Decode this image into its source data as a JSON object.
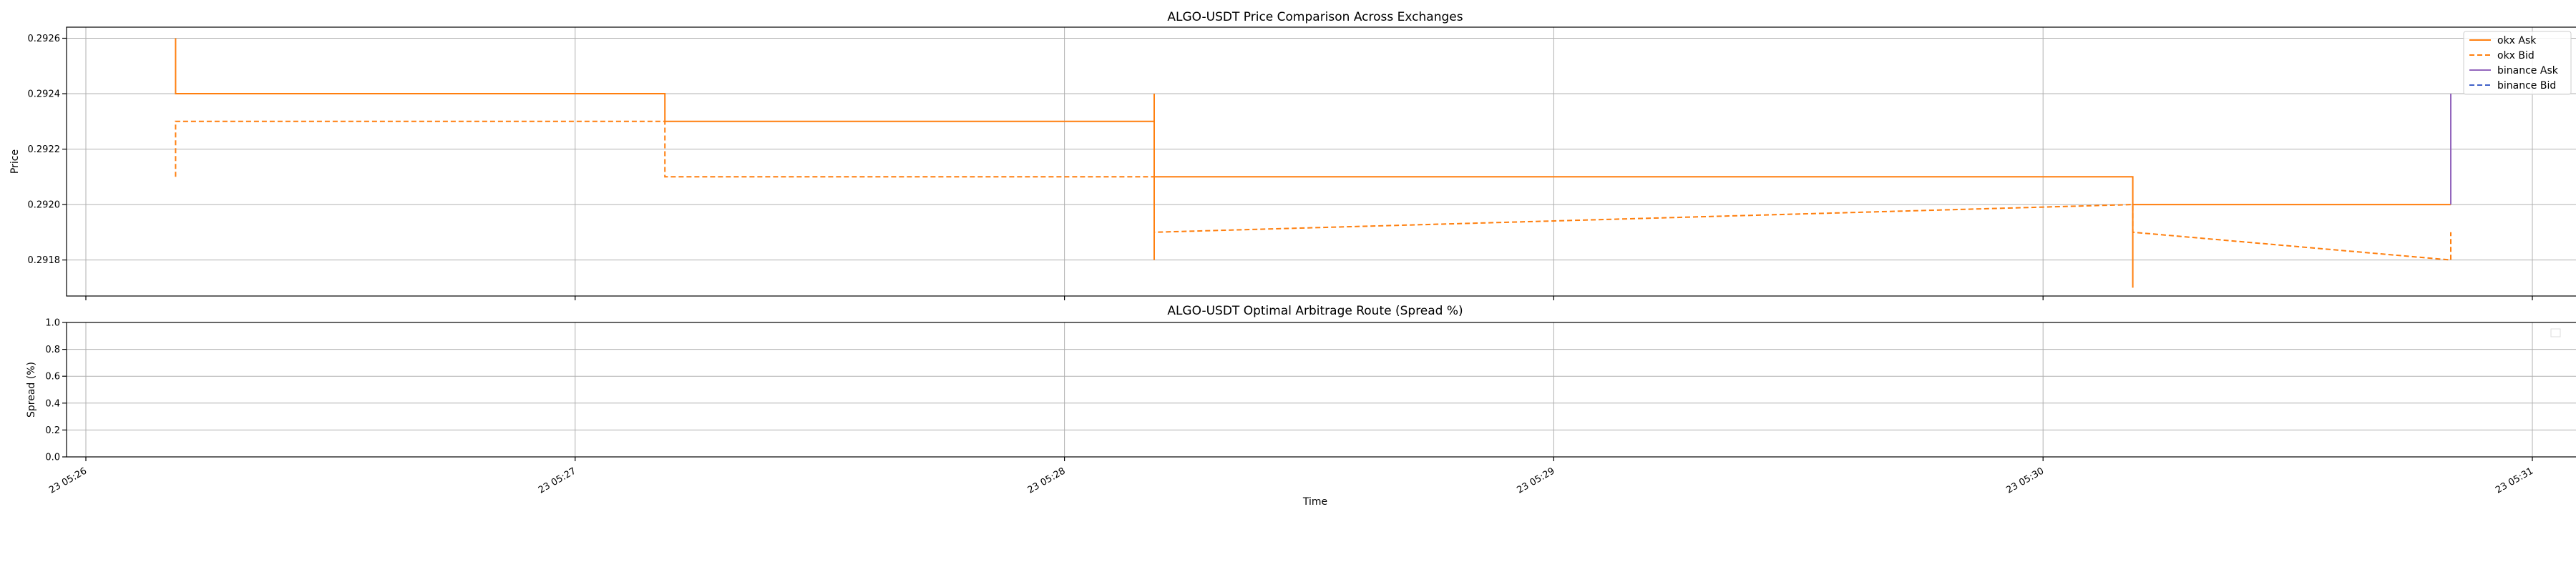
{
  "chart_data": [
    {
      "type": "line",
      "title": "ALGO-USDT Price Comparison Across Exchanges",
      "xlabel": "",
      "ylabel": "Price",
      "xlim": [
        "05:26:00",
        "05:31:00"
      ],
      "ylim": [
        0.29167,
        0.29264
      ],
      "yticks": [
        "0.2918",
        "0.2920",
        "0.2922",
        "0.2924",
        "0.2926"
      ],
      "grid": true,
      "legend_position": "top-right",
      "series": [
        {
          "name": "okx Ask",
          "color": "#ff7f0e",
          "dash": "solid",
          "points": [
            [
              "05:26:11",
              0.2926
            ],
            [
              "05:26:11",
              0.2924
            ],
            [
              "05:27:11",
              0.2924
            ],
            [
              "05:27:11",
              0.2923
            ],
            [
              "05:28:11",
              0.2923
            ],
            [
              "05:28:11",
              0.2924
            ],
            [
              "05:28:11",
              0.2918
            ],
            [
              "05:28:11",
              0.2921
            ],
            [
              "05:30:11",
              0.2921
            ],
            [
              "05:30:11",
              0.2917
            ],
            [
              "05:30:11",
              0.292
            ],
            [
              "05:30:50",
              0.292
            ]
          ]
        },
        {
          "name": "okx Bid",
          "color": "#ff7f0e",
          "dash": "dashed",
          "points": [
            [
              "05:26:11",
              0.2921
            ],
            [
              "05:26:11",
              0.2923
            ],
            [
              "05:27:11",
              0.2923
            ],
            [
              "05:27:11",
              0.2921
            ],
            [
              "05:28:11",
              0.2921
            ],
            [
              "05:28:11",
              0.2918
            ],
            [
              "05:28:11",
              0.2919
            ],
            [
              "05:30:11",
              0.292
            ],
            [
              "05:30:11",
              0.2919
            ],
            [
              "05:30:50",
              0.2918
            ],
            [
              "05:30:50",
              0.2919
            ]
          ]
        },
        {
          "name": "binance Ask",
          "color": "#9467bd",
          "dash": "solid",
          "points": [
            [
              "05:30:50",
              0.2924
            ],
            [
              "05:30:50",
              0.292
            ]
          ]
        },
        {
          "name": "binance Bid",
          "color": "#4060c8",
          "dash": "dashed",
          "points": []
        }
      ]
    },
    {
      "type": "line",
      "title": "ALGO-USDT Optimal Arbitrage Route (Spread %)",
      "xlabel": "Time",
      "ylabel": "Spread (%)",
      "xlim": [
        "05:26:00",
        "05:31:00"
      ],
      "ylim": [
        0.0,
        1.0
      ],
      "yticks": [
        "0.0",
        "0.2",
        "0.4",
        "0.6",
        "0.8",
        "1.0"
      ],
      "xticks": [
        "23 05:26",
        "23 05:27",
        "23 05:28",
        "23 05:29",
        "23 05:30",
        "23 05:31"
      ],
      "grid": true,
      "legend_position": "top-right",
      "series": []
    }
  ]
}
